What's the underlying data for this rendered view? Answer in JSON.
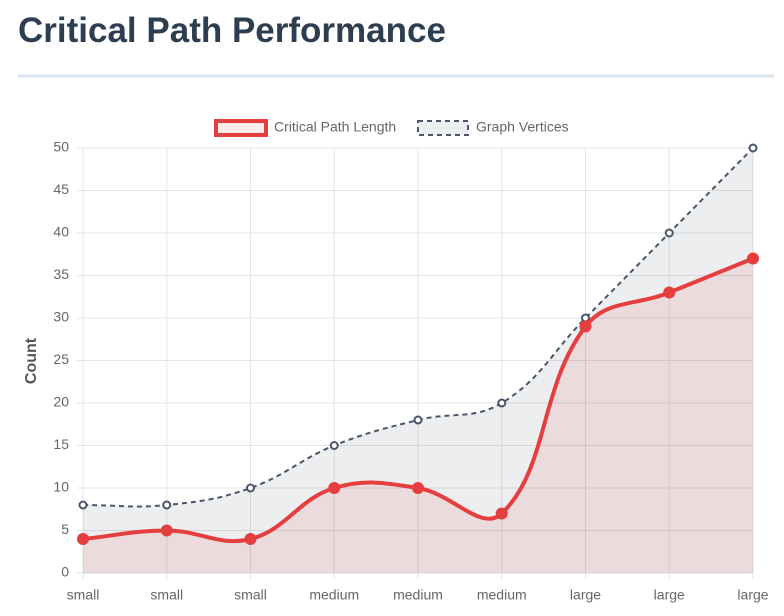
{
  "chart_data": {
    "type": "line",
    "title": "Critical Path Performance",
    "y_label": "Count",
    "categories": [
      "small",
      "small",
      "small",
      "medium",
      "medium",
      "medium",
      "large",
      "large",
      "large"
    ],
    "series": [
      {
        "name": "Critical Path Length",
        "color": "#e53e3e",
        "dashed": false,
        "values": [
          4,
          5,
          4,
          10,
          10,
          7,
          29,
          33,
          37
        ]
      },
      {
        "name": "Graph Vertices",
        "color": "#4a5568",
        "dashed": true,
        "values": [
          8,
          8,
          10,
          15,
          18,
          20,
          30,
          40,
          50
        ]
      }
    ],
    "ylim": [
      0,
      50
    ],
    "yticks": [
      0,
      5,
      10,
      15,
      20,
      25,
      30,
      35,
      40,
      45,
      50
    ],
    "grid": true,
    "fill": true,
    "legend": "top"
  }
}
